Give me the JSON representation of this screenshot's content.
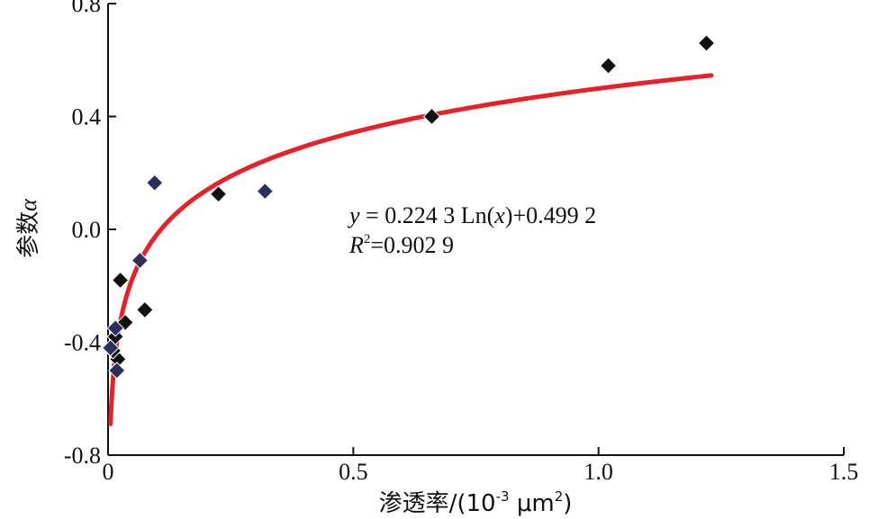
{
  "chart_data": {
    "type": "scatter",
    "xlabel": "渗透率/(10-3 μm2)",
    "xlabel_parts": {
      "main": "渗透率/(10",
      "exp1": "-3",
      "unit": " μm",
      "exp2": "2",
      "close": ")"
    },
    "ylabel": "参数α",
    "ylabel_parts": {
      "main": "参数",
      "symbol": "α"
    },
    "xlim": [
      0,
      1.5
    ],
    "ylim": [
      -0.8,
      0.8
    ],
    "x_ticks": [
      0,
      0.5,
      1.0,
      1.5
    ],
    "x_tick_labels": [
      "0",
      "0.5",
      "1.0",
      "1.5"
    ],
    "y_ticks": [
      -0.8,
      -0.4,
      0.0,
      0.4,
      0.8
    ],
    "y_tick_labels": [
      "-0.8",
      "-0.4",
      "0.0",
      "0.4",
      "0.8"
    ],
    "grid": false,
    "series": [
      {
        "marker": "diamond",
        "color": "#111111",
        "points": [
          {
            "x": 1.22,
            "y": 0.66
          },
          {
            "x": 1.02,
            "y": 0.58
          },
          {
            "x": 0.66,
            "y": 0.4
          },
          {
            "x": 0.225,
            "y": 0.125
          },
          {
            "x": 0.075,
            "y": -0.285
          },
          {
            "x": 0.025,
            "y": -0.18
          },
          {
            "x": 0.035,
            "y": -0.33
          },
          {
            "x": 0.015,
            "y": -0.38
          },
          {
            "x": 0.02,
            "y": -0.46
          },
          {
            "x": 0.01,
            "y": -0.43
          }
        ]
      },
      {
        "marker": "diamond",
        "color": "#2b2f5e",
        "points": [
          {
            "x": 0.095,
            "y": 0.165
          },
          {
            "x": 0.32,
            "y": 0.135
          },
          {
            "x": 0.065,
            "y": -0.11
          },
          {
            "x": 0.015,
            "y": -0.35
          },
          {
            "x": 0.005,
            "y": -0.42
          },
          {
            "x": 0.018,
            "y": -0.5
          }
        ]
      }
    ],
    "fit": {
      "type": "log",
      "a": 0.2243,
      "b": 0.4992,
      "x_range": [
        0.005,
        1.23
      ],
      "color": "#e8202a"
    },
    "annotation": {
      "eq_parts": {
        "y": "y",
        "eq": " = 0.224 3 Ln(",
        "x": "x",
        "tail": ")+0.499 2"
      },
      "r2_parts": {
        "R": "R",
        "sup": "2",
        "val": "=0.902 9"
      }
    }
  }
}
